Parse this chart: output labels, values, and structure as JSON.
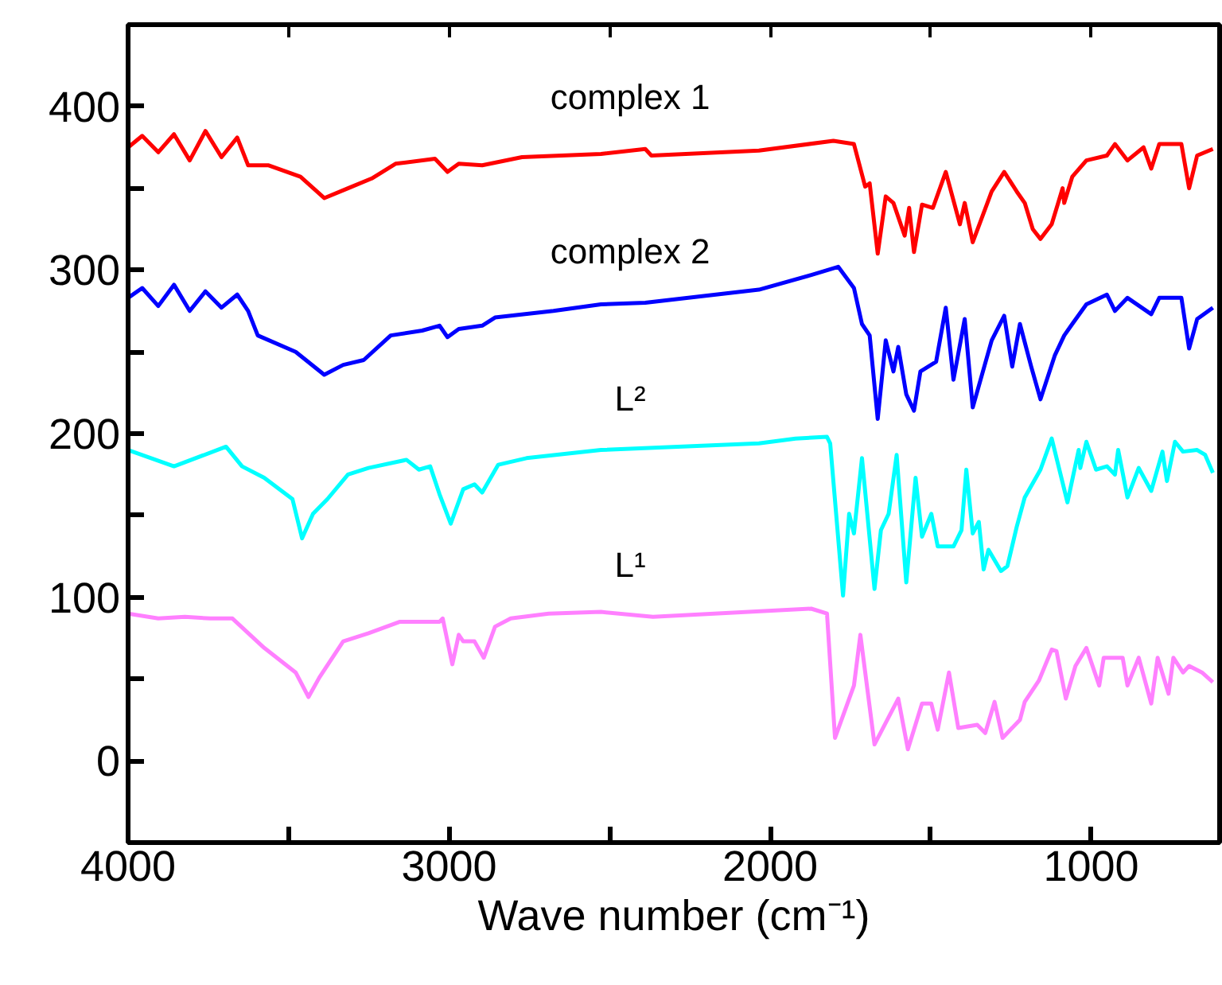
{
  "chart_data": {
    "type": "line",
    "xlabel": "Wave number (cm⁻¹)",
    "xlim": [
      4000,
      600
    ],
    "ylim": [
      -50,
      450
    ],
    "xticks": [
      4000,
      {
        "value": 3500,
        "label": null
      },
      3000,
      {
        "value": 2500,
        "label": null
      },
      2000,
      {
        "value": 1500,
        "label": null
      },
      1000
    ],
    "yticks": [
      0,
      {
        "value": 50,
        "label": null
      },
      100,
      {
        "value": 150,
        "label": null
      },
      200,
      {
        "value": 250,
        "label": null
      },
      300,
      {
        "value": 350,
        "label": null
      },
      400
    ],
    "grid": false,
    "legend": false,
    "line_style": "solid",
    "marker": "none",
    "series": [
      {
        "name": "complex 1",
        "color": "#ff0000",
        "x": [
          4000,
          3956,
          3906,
          3857,
          3808,
          3759,
          3709,
          3660,
          3626,
          3562,
          3463,
          3389,
          3315,
          3241,
          3167,
          3044,
          3005,
          2970,
          2897,
          2773,
          2527,
          2389,
          2370,
          2035,
          1803,
          1739,
          1704,
          1690,
          1665,
          1640,
          1616,
          1581,
          1567,
          1552,
          1527,
          1493,
          1453,
          1409,
          1394,
          1369,
          1310,
          1271,
          1232,
          1207,
          1182,
          1158,
          1123,
          1089,
          1084,
          1059,
          1015,
          951,
          926,
          887,
          837,
          813,
          788,
          719,
          695,
          670,
          621
        ],
        "values": [
          375,
          382,
          372,
          383,
          367,
          385,
          369,
          381,
          364,
          364,
          357,
          344,
          350,
          356,
          365,
          368,
          360,
          365,
          364,
          369,
          371,
          374,
          370,
          373,
          379,
          377,
          351,
          353,
          310,
          345,
          341,
          321,
          338,
          311,
          340,
          338,
          360,
          328,
          341,
          317,
          348,
          360,
          348,
          341,
          325,
          319,
          328,
          350,
          341,
          357,
          367,
          370,
          377,
          367,
          375,
          362,
          377,
          377,
          350,
          370,
          374
        ]
      },
      {
        "name": "complex 2",
        "color": "#0000ff",
        "x": [
          4000,
          3956,
          3906,
          3857,
          3808,
          3759,
          3709,
          3660,
          3626,
          3596,
          3478,
          3389,
          3330,
          3266,
          3182,
          3084,
          3030,
          3005,
          2970,
          2897,
          2857,
          2675,
          2527,
          2389,
          2035,
          1872,
          1788,
          1739,
          1714,
          1690,
          1665,
          1640,
          1616,
          1601,
          1576,
          1552,
          1532,
          1507,
          1483,
          1453,
          1429,
          1394,
          1369,
          1310,
          1271,
          1246,
          1222,
          1187,
          1158,
          1113,
          1084,
          1059,
          1015,
          951,
          926,
          887,
          813,
          788,
          719,
          695,
          670,
          621
        ],
        "values": [
          283,
          289,
          278,
          291,
          275,
          287,
          277,
          285,
          275,
          260,
          250,
          236,
          242,
          245,
          260,
          263,
          266,
          259,
          264,
          266,
          271,
          275,
          279,
          280,
          288,
          297,
          302,
          289,
          267,
          260,
          209,
          257,
          238,
          253,
          224,
          214,
          238,
          241,
          244,
          277,
          233,
          270,
          216,
          257,
          272,
          241,
          267,
          241,
          221,
          248,
          260,
          267,
          279,
          285,
          275,
          283,
          273,
          283,
          283,
          252,
          270,
          277
        ]
      },
      {
        "name": "L²",
        "color": "#00ffff",
        "x": [
          4000,
          3857,
          3695,
          3645,
          3576,
          3488,
          3458,
          3424,
          3379,
          3315,
          3251,
          3133,
          3094,
          3059,
          3030,
          2995,
          2956,
          2921,
          2897,
          2847,
          2759,
          2527,
          2035,
          1921,
          1823,
          1813,
          1773,
          1754,
          1739,
          1714,
          1675,
          1655,
          1631,
          1606,
          1576,
          1547,
          1527,
          1498,
          1478,
          1429,
          1404,
          1389,
          1369,
          1350,
          1335,
          1320,
          1281,
          1261,
          1232,
          1207,
          1158,
          1123,
          1074,
          1039,
          1034,
          1015,
          985,
          951,
          926,
          916,
          887,
          852,
          813,
          778,
          764,
          739,
          714,
          670,
          645,
          621
        ],
        "values": [
          190,
          180,
          192,
          180,
          173,
          160,
          136,
          151,
          160,
          175,
          179,
          184,
          178,
          180,
          163,
          145,
          166,
          169,
          164,
          181,
          185,
          190,
          194,
          197,
          198,
          194,
          101,
          151,
          139,
          185,
          105,
          141,
          151,
          187,
          109,
          173,
          137,
          151,
          131,
          131,
          141,
          178,
          139,
          146,
          117,
          129,
          116,
          119,
          143,
          161,
          178,
          197,
          158,
          190,
          179,
          195,
          178,
          180,
          175,
          190,
          161,
          179,
          165,
          189,
          171,
          195,
          189,
          190,
          187,
          176
        ]
      },
      {
        "name": "L¹",
        "color": "#ff80ff",
        "x": [
          4000,
          3906,
          3823,
          3744,
          3675,
          3576,
          3478,
          3438,
          3404,
          3330,
          3251,
          3153,
          3030,
          3020,
          2990,
          2970,
          2956,
          2921,
          2892,
          2857,
          2808,
          2690,
          2527,
          2365,
          1872,
          1823,
          1798,
          1739,
          1719,
          1675,
          1601,
          1571,
          1527,
          1498,
          1478,
          1443,
          1414,
          1355,
          1330,
          1301,
          1276,
          1222,
          1207,
          1163,
          1123,
          1108,
          1079,
          1049,
          1015,
          975,
          961,
          902,
          887,
          852,
          813,
          793,
          759,
          744,
          714,
          695,
          655,
          621
        ],
        "values": [
          90,
          87,
          88,
          87,
          87,
          69,
          54,
          39,
          51,
          73,
          78,
          85,
          85,
          87,
          59,
          77,
          73,
          73,
          63,
          82,
          87,
          90,
          91,
          88,
          93,
          90,
          14,
          46,
          77,
          10,
          38,
          7,
          35,
          35,
          19,
          54,
          20,
          22,
          17,
          36,
          14,
          25,
          36,
          49,
          68,
          67,
          38,
          58,
          69,
          46,
          63,
          63,
          46,
          63,
          35,
          63,
          41,
          63,
          54,
          58,
          54,
          48
        ]
      }
    ]
  }
}
